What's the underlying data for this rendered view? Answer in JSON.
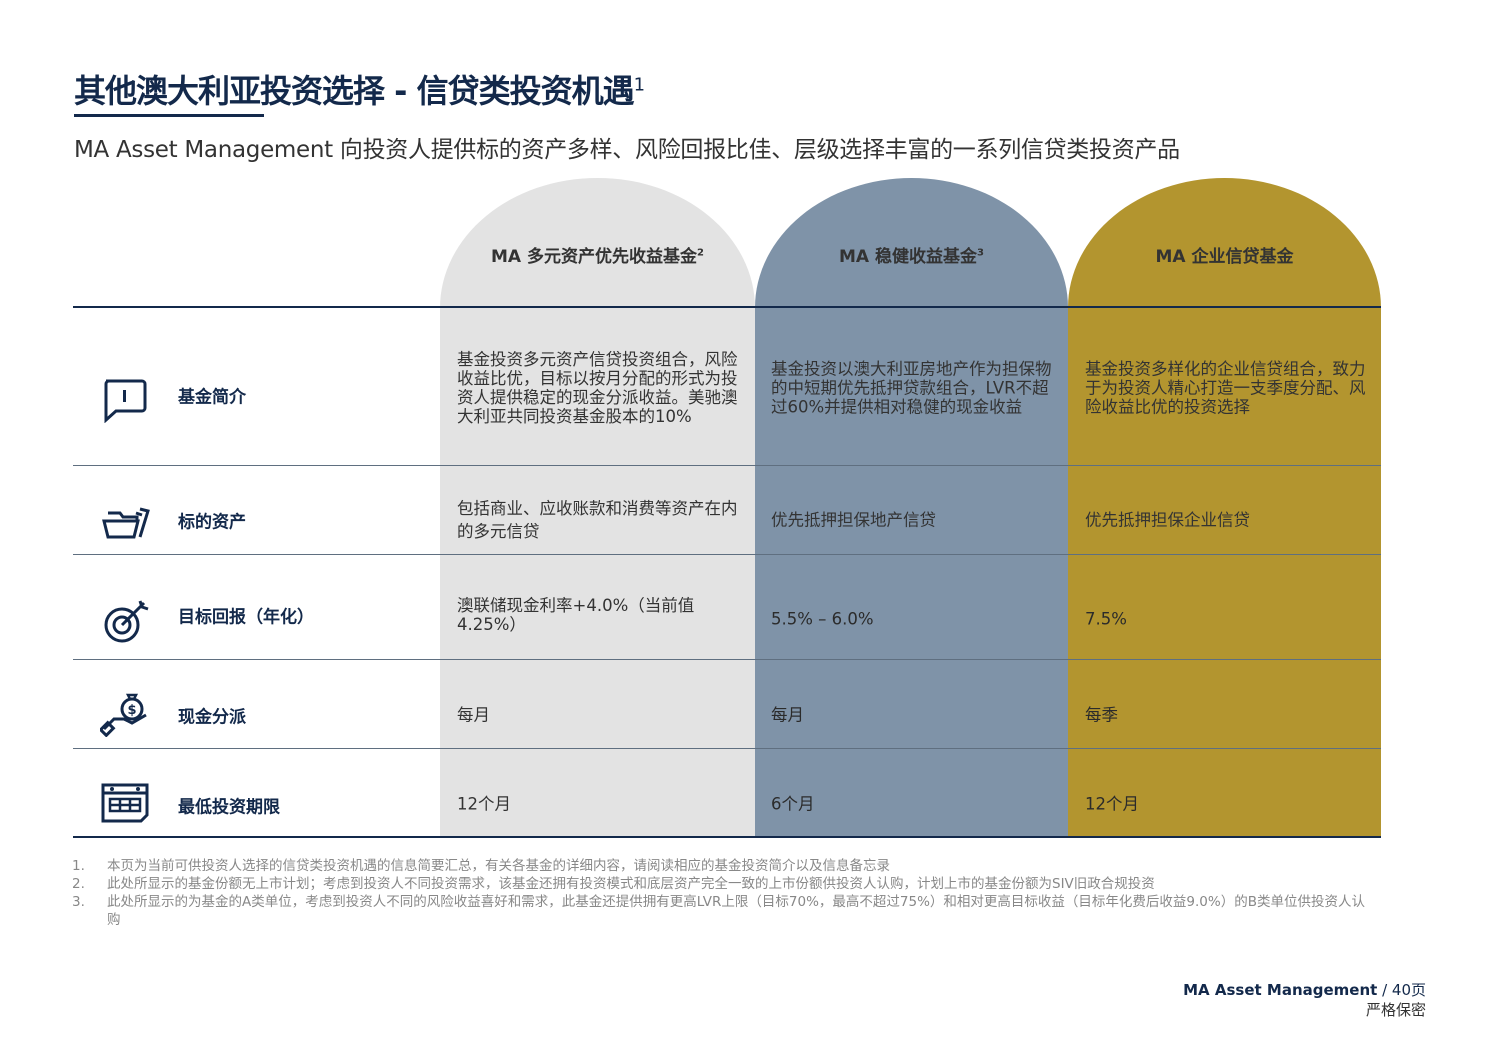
{
  "title": "其他澳大利亚投资选择 - 信贷类投资机遇",
  "title_sup": "1",
  "subtitle": "MA Asset Management 向投资人提供标的资产多样、风险回报比佳、层级选择丰富的一系列信贷类投资产品",
  "columns": [
    {
      "name": "MA 多元资产优先收益基金",
      "sup": "2",
      "color": "#e3e3e3"
    },
    {
      "name": "MA 稳健收益基金",
      "sup": "3",
      "color": "#7f93a8"
    },
    {
      "name": "MA 企业信贷基金",
      "sup": "",
      "color": "#b3952f"
    }
  ],
  "rows": [
    {
      "label": "基金简介",
      "icon": "info-speech-bubble-icon",
      "values": [
        "基金投资多元资产信贷投资组合，风险收益比优，目标以按月分配的形式为投资人提供稳定的现金分派收益。美驰澳大利亚共同投资基金股本的10%",
        "基金投资以澳大利亚房地产作为担保物的中短期优先抵押贷款组合，LVR不超过60%并提供相对稳健的现金收益",
        "基金投资多样化的企业信贷组合，致力于为投资人精心打造一支季度分配、风险收益比优的投资选择"
      ]
    },
    {
      "label": "标的资产",
      "icon": "folder-icon",
      "values": [
        "包括商业、应收账款和消费等资产在内的多元信贷",
        "优先抵押担保地产信贷",
        "优先抵押担保企业信贷"
      ]
    },
    {
      "label": "目标回报（年化）",
      "icon": "target-icon",
      "values": [
        "澳联储现金利率+4.0%（当前值4.25%）",
        "5.5% – 6.0%",
        "7.5%"
      ]
    },
    {
      "label": "现金分派",
      "icon": "money-bag-hand-icon",
      "values": [
        "每月",
        "每月",
        "每季"
      ]
    },
    {
      "label": "最低投资期限",
      "icon": "calendar-icon",
      "values": [
        "12个月",
        "6个月",
        "12个月"
      ]
    }
  ],
  "notes": [
    {
      "n": "1.",
      "t": "本页为当前可供投资人选择的信贷类投资机遇的信息简要汇总，有关各基金的详细内容，请阅读相应的基金投资简介以及信息备忘录"
    },
    {
      "n": "2.",
      "t": "此处所显示的基金份额无上市计划；考虑到投资人不同投资需求，该基金还拥有投资模式和底层资产完全一致的上市份额供投资人认购，计划上市的基金份额为SIV旧政合规投资"
    },
    {
      "n": "3.",
      "t": "此处所显示的为基金的A类单位，考虑到投资人不同的风险收益喜好和需求，此基金还提供拥有更高LVR上限（目标70%，最高不超过75%）和相对更高目标收益（目标年化费后收益9.0%）的B类单位供投资人认购"
    }
  ],
  "footer": {
    "company": "MA Asset Management",
    "page": " / 40页",
    "confidential": "严格保密"
  }
}
